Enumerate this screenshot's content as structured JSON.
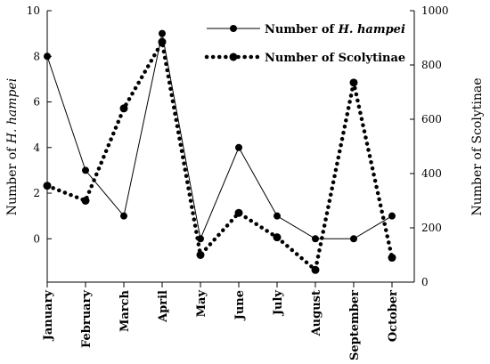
{
  "chart_data": {
    "type": "line",
    "categories": [
      "January",
      "February",
      "March",
      "April",
      "May",
      "June",
      "July",
      "August",
      "September",
      "October"
    ],
    "series": [
      {
        "name": "Number of H. hampei",
        "name_prefix": "Number of ",
        "name_italic": "H. hampei",
        "axis": "left",
        "style": "solid",
        "values": [
          8,
          3,
          1,
          9,
          0,
          4,
          1,
          0,
          0,
          1
        ]
      },
      {
        "name": "Number of Scolytinae",
        "axis": "right",
        "style": "dotted",
        "values": [
          355,
          300,
          640,
          885,
          100,
          255,
          165,
          45,
          735,
          90
        ]
      }
    ],
    "y_left": {
      "label_prefix": "Number of ",
      "label_italic": "H. hampei",
      "ticks": [
        "10",
        "8",
        "6",
        "4",
        "2",
        "0"
      ],
      "range": [
        -1.9,
        10
      ]
    },
    "y_right": {
      "label": "Number of Scolytinae",
      "ticks": [
        "1000",
        "800",
        "600",
        "400",
        "200",
        "0"
      ],
      "range": [
        0,
        1000
      ]
    },
    "legend_position": "top-right",
    "grid": false
  }
}
